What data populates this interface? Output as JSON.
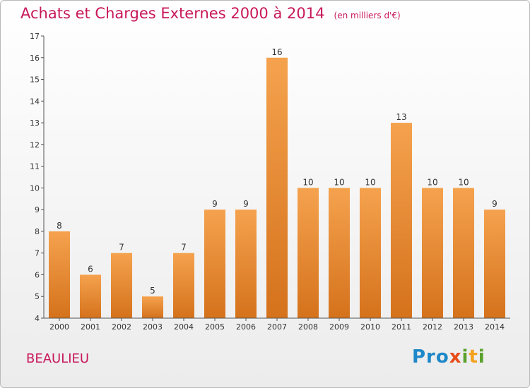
{
  "title": "Achats et Charges Externes 2000 à 2014",
  "unit": "(en milliers d'€)",
  "commune": "BEAULIEU",
  "brand": "Proxiti",
  "colors": {
    "title": "#c8185a",
    "bar_top": "#f5a24e",
    "bar_bottom": "#d5721c"
  },
  "chart_data": {
    "type": "bar",
    "categories": [
      "2000",
      "2001",
      "2002",
      "2003",
      "2004",
      "2005",
      "2006",
      "2007",
      "2008",
      "2009",
      "2010",
      "2011",
      "2012",
      "2013",
      "2014"
    ],
    "values": [
      8,
      6,
      7,
      5,
      7,
      9,
      9,
      16,
      10,
      10,
      10,
      13,
      10,
      10,
      9
    ],
    "data_labels": [
      "8",
      "6",
      "7",
      "5",
      "7",
      "9",
      "9",
      "16",
      "10",
      "10",
      "10",
      "13",
      "10",
      "10",
      "9"
    ],
    "ylim": [
      4,
      17
    ],
    "yticks": [
      "4",
      "5",
      "6",
      "7",
      "8",
      "9",
      "10",
      "11",
      "12",
      "13",
      "14",
      "15",
      "16",
      "17"
    ],
    "grid": false,
    "legend": "none"
  }
}
